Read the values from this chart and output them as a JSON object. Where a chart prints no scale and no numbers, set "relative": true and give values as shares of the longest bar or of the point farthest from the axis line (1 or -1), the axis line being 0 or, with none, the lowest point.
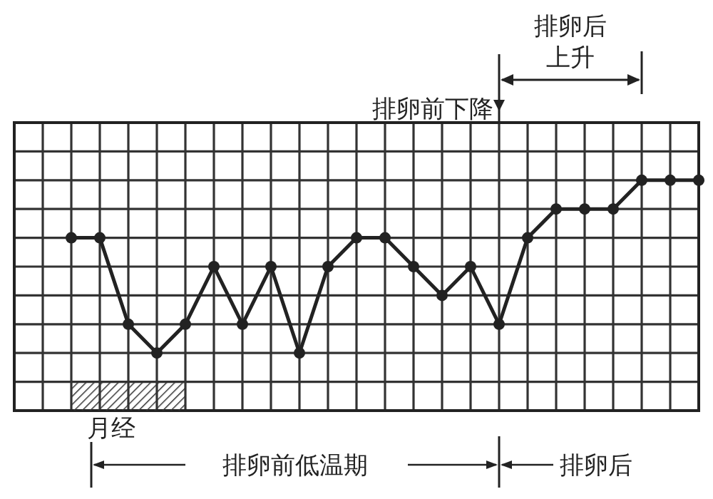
{
  "chart_data": {
    "type": "line",
    "relative": true,
    "categories": [
      null,
      null,
      null,
      null,
      null,
      null,
      null,
      null,
      null,
      null,
      null,
      null,
      null,
      null,
      null,
      null,
      null,
      null,
      null,
      null,
      null,
      null,
      null,
      null,
      null
    ],
    "series": [
      {
        "color": "#222222",
        "values": [
          null,
          null,
          0.75,
          0.75,
          0.375,
          0.25,
          0.375,
          0.625,
          0.375,
          0.625,
          0.25,
          0.625,
          0.75,
          0.75,
          0.625,
          0.5,
          0.625,
          0.375,
          0.75,
          0.875,
          0.875,
          0.875,
          1,
          1,
          1
        ]
      }
    ],
    "marker": "circle",
    "line_style": "solid",
    "grid": true,
    "annotations": [
      "排卵后",
      "上升",
      "排卵前下降",
      "月经",
      "排卵前低温期",
      "排卵后"
    ]
  }
}
